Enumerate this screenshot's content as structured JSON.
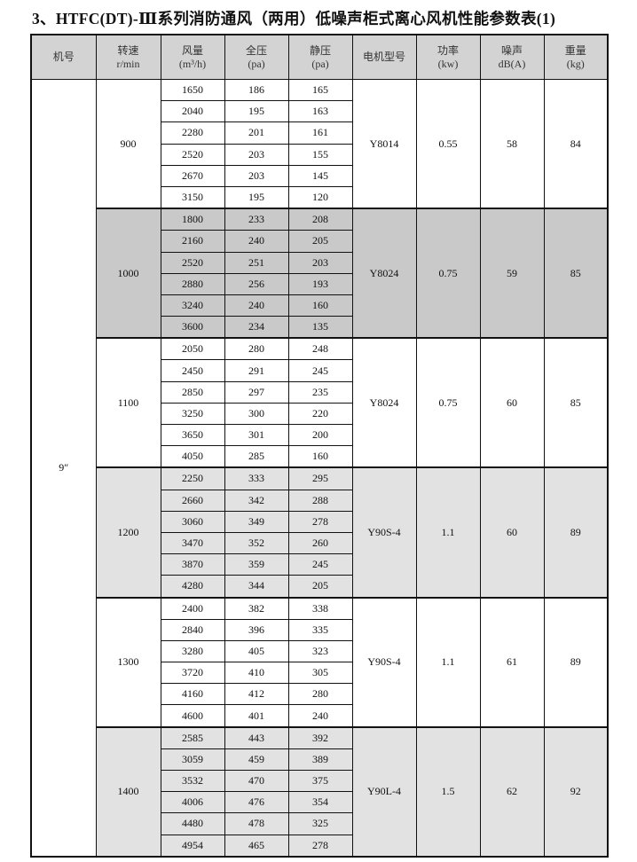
{
  "title": "3、HTFC(DT)-Ⅲ系列消防通风（两用）低噪声柜式离心风机性能参数表(1)",
  "headers": [
    {
      "l1": "机号",
      "l2": ""
    },
    {
      "l1": "转速",
      "l2": "r/min"
    },
    {
      "l1": "风量",
      "l2": "(m³/h)"
    },
    {
      "l1": "全压",
      "l2": "(pa)"
    },
    {
      "l1": "静压",
      "l2": "(pa)"
    },
    {
      "l1": "电机型号",
      "l2": ""
    },
    {
      "l1": "功率",
      "l2": "(kw)"
    },
    {
      "l1": "噪声",
      "l2": "dB(A)"
    },
    {
      "l1": "重量",
      "l2": "(kg)"
    }
  ],
  "machine_no": "9″",
  "groups": [
    {
      "speed": "900",
      "motor": "Y8014",
      "power": "0.55",
      "noise": "58",
      "weight": "84",
      "shade": "none",
      "rows": [
        [
          "1650",
          "186",
          "165"
        ],
        [
          "2040",
          "195",
          "163"
        ],
        [
          "2280",
          "201",
          "161"
        ],
        [
          "2520",
          "203",
          "155"
        ],
        [
          "2670",
          "203",
          "145"
        ],
        [
          "3150",
          "195",
          "120"
        ]
      ]
    },
    {
      "speed": "1000",
      "motor": "Y8024",
      "power": "0.75",
      "noise": "59",
      "weight": "85",
      "shade": "dark",
      "rows": [
        [
          "1800",
          "233",
          "208"
        ],
        [
          "2160",
          "240",
          "205"
        ],
        [
          "2520",
          "251",
          "203"
        ],
        [
          "2880",
          "256",
          "193"
        ],
        [
          "3240",
          "240",
          "160"
        ],
        [
          "3600",
          "234",
          "135"
        ]
      ]
    },
    {
      "speed": "1100",
      "motor": "Y8024",
      "power": "0.75",
      "noise": "60",
      "weight": "85",
      "shade": "none",
      "rows": [
        [
          "2050",
          "280",
          "248"
        ],
        [
          "2450",
          "291",
          "245"
        ],
        [
          "2850",
          "297",
          "235"
        ],
        [
          "3250",
          "300",
          "220"
        ],
        [
          "3650",
          "301",
          "200"
        ],
        [
          "4050",
          "285",
          "160"
        ]
      ]
    },
    {
      "speed": "1200",
      "motor": "Y90S-4",
      "power": "1.1",
      "noise": "60",
      "weight": "89",
      "shade": "light",
      "rows": [
        [
          "2250",
          "333",
          "295"
        ],
        [
          "2660",
          "342",
          "288"
        ],
        [
          "3060",
          "349",
          "278"
        ],
        [
          "3470",
          "352",
          "260"
        ],
        [
          "3870",
          "359",
          "245"
        ],
        [
          "4280",
          "344",
          "205"
        ]
      ]
    },
    {
      "speed": "1300",
      "motor": "Y90S-4",
      "power": "1.1",
      "noise": "61",
      "weight": "89",
      "shade": "none",
      "rows": [
        [
          "2400",
          "382",
          "338"
        ],
        [
          "2840",
          "396",
          "335"
        ],
        [
          "3280",
          "405",
          "323"
        ],
        [
          "3720",
          "410",
          "305"
        ],
        [
          "4160",
          "412",
          "280"
        ],
        [
          "4600",
          "401",
          "240"
        ]
      ]
    },
    {
      "speed": "1400",
      "motor": "Y90L-4",
      "power": "1.5",
      "noise": "62",
      "weight": "92",
      "shade": "light",
      "rows": [
        [
          "2585",
          "443",
          "392"
        ],
        [
          "3059",
          "459",
          "389"
        ],
        [
          "3532",
          "470",
          "375"
        ],
        [
          "4006",
          "476",
          "354"
        ],
        [
          "4480",
          "478",
          "325"
        ],
        [
          "4954",
          "465",
          "278"
        ]
      ]
    }
  ]
}
